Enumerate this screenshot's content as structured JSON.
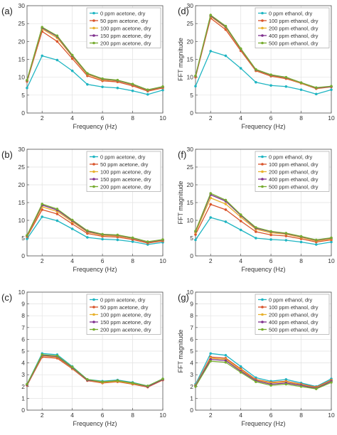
{
  "colors": {
    "series": [
      "#1fb5c2",
      "#d9532a",
      "#e8b12c",
      "#7f2f8e",
      "#77ac30"
    ],
    "grid": "#e2e2e2",
    "axis": "#555555",
    "text": "#333333"
  },
  "chart_data": [
    {
      "panel": "(a)",
      "type": "line",
      "xlabel": "Frequency (Hz)",
      "ylabel": "",
      "xlim": [
        1,
        10
      ],
      "ylim": [
        0,
        30
      ],
      "xticks": [
        2,
        4,
        6,
        8,
        10
      ],
      "yticks": [
        0,
        5,
        10,
        15,
        20,
        25,
        30
      ],
      "legend_position": "top-right",
      "grid": true,
      "x": [
        1,
        2,
        3,
        4,
        5,
        6,
        7,
        8,
        9,
        10
      ],
      "series": [
        {
          "name": "0 ppm acetone, dry",
          "values": [
            7.0,
            16.0,
            14.8,
            11.8,
            8.0,
            7.3,
            7.0,
            6.2,
            5.2,
            6.4
          ]
        },
        {
          "name": "50 ppm acetone, dry",
          "values": [
            8.8,
            22.8,
            20.0,
            15.2,
            10.4,
            9.0,
            8.7,
            7.6,
            6.1,
            7.0
          ]
        },
        {
          "name": "100 ppm acetone, dry",
          "values": [
            9.0,
            23.5,
            21.0,
            15.8,
            10.8,
            9.3,
            9.0,
            7.9,
            6.3,
            7.2
          ]
        },
        {
          "name": "150 ppm acetone, dry",
          "values": [
            9.1,
            23.8,
            21.4,
            16.0,
            11.0,
            9.5,
            9.1,
            8.0,
            6.4,
            7.3
          ]
        },
        {
          "name": "200 ppm acetone, dry",
          "values": [
            9.2,
            24.0,
            21.6,
            16.2,
            11.1,
            9.6,
            9.2,
            8.1,
            6.5,
            7.4
          ]
        }
      ]
    },
    {
      "panel": "(d)",
      "type": "line",
      "xlabel": "Frequency (Hz)",
      "ylabel": "FFT magnitude",
      "xlim": [
        1,
        10
      ],
      "ylim": [
        0,
        30
      ],
      "xticks": [
        2,
        4,
        6,
        8,
        10
      ],
      "yticks": [
        0,
        5,
        10,
        15,
        20,
        25,
        30
      ],
      "legend_position": "top-right",
      "grid": true,
      "x": [
        1,
        2,
        3,
        4,
        5,
        6,
        7,
        8,
        9,
        10
      ],
      "series": [
        {
          "name": "0 ppm ethanol, dry",
          "values": [
            7.5,
            17.3,
            16.0,
            12.5,
            8.6,
            7.7,
            7.4,
            6.5,
            5.3,
            6.5
          ]
        },
        {
          "name": "100 ppm ethanol, dry",
          "values": [
            10.0,
            26.5,
            23.3,
            17.4,
            11.8,
            10.3,
            9.6,
            8.3,
            6.8,
            7.3
          ]
        },
        {
          "name": "200 ppm ethanol, dry",
          "values": [
            10.2,
            27.0,
            23.9,
            17.8,
            12.0,
            10.5,
            9.8,
            8.4,
            6.9,
            7.4
          ]
        },
        {
          "name": "400 ppm ethanol, dry",
          "values": [
            10.3,
            27.2,
            24.1,
            17.9,
            12.1,
            10.6,
            9.9,
            8.5,
            7.0,
            7.4
          ]
        },
        {
          "name": "500 ppm ethanol, dry",
          "values": [
            10.4,
            27.4,
            24.3,
            18.0,
            12.2,
            10.7,
            10.0,
            8.5,
            7.1,
            7.5
          ]
        }
      ]
    },
    {
      "panel": "(b)",
      "type": "line",
      "xlabel": "Frequency (Hz)",
      "ylabel": "",
      "xlim": [
        1,
        10
      ],
      "ylim": [
        0,
        30
      ],
      "xticks": [
        2,
        4,
        6,
        8,
        10
      ],
      "yticks": [
        0,
        5,
        10,
        15,
        20,
        25,
        30
      ],
      "legend_position": "top-right",
      "grid": true,
      "x": [
        1,
        2,
        3,
        4,
        5,
        6,
        7,
        8,
        9,
        10
      ],
      "series": [
        {
          "name": "0 ppm acetone, dry",
          "values": [
            4.8,
            11.0,
            9.9,
            7.6,
            5.2,
            4.7,
            4.5,
            4.0,
            3.2,
            3.8
          ]
        },
        {
          "name": "50 ppm acetone, dry",
          "values": [
            5.4,
            13.0,
            11.8,
            9.0,
            6.3,
            5.5,
            5.3,
            4.6,
            3.6,
            4.2
          ]
        },
        {
          "name": "100 ppm acetone, dry",
          "values": [
            5.6,
            13.8,
            12.5,
            9.6,
            6.7,
            5.8,
            5.6,
            4.9,
            3.8,
            4.4
          ]
        },
        {
          "name": "150 ppm acetone, dry",
          "values": [
            5.7,
            14.3,
            12.9,
            9.9,
            6.9,
            6.0,
            5.8,
            5.0,
            3.9,
            4.5
          ]
        },
        {
          "name": "200 ppm acetone, dry",
          "values": [
            5.8,
            14.6,
            13.2,
            10.1,
            7.1,
            6.1,
            5.9,
            5.1,
            4.0,
            4.6
          ]
        }
      ]
    },
    {
      "panel": "(f)",
      "type": "line",
      "xlabel": "Frequency (Hz)",
      "ylabel": "FFT magnitude",
      "xlim": [
        1,
        10
      ],
      "ylim": [
        0,
        30
      ],
      "xticks": [
        2,
        4,
        6,
        8,
        10
      ],
      "yticks": [
        0,
        5,
        10,
        15,
        20,
        25,
        30
      ],
      "legend_position": "top-right",
      "grid": true,
      "x": [
        1,
        2,
        3,
        4,
        5,
        6,
        7,
        8,
        9,
        10
      ],
      "series": [
        {
          "name": "0 ppm ethanol, dry",
          "values": [
            4.5,
            10.8,
            9.6,
            7.3,
            5.0,
            4.6,
            4.4,
            3.9,
            3.2,
            3.9
          ]
        },
        {
          "name": "100 ppm ethanol, dry",
          "values": [
            6.0,
            14.5,
            13.0,
            9.8,
            6.8,
            5.9,
            5.6,
            4.8,
            3.9,
            4.5
          ]
        },
        {
          "name": "200 ppm ethanol, dry",
          "values": [
            6.6,
            16.3,
            14.6,
            10.9,
            7.5,
            6.5,
            6.1,
            5.2,
            4.2,
            4.8
          ]
        },
        {
          "name": "400 ppm ethanol, dry",
          "values": [
            6.9,
            17.2,
            15.4,
            11.4,
            7.8,
            6.8,
            6.3,
            5.4,
            4.4,
            5.0
          ]
        },
        {
          "name": "500 ppm ethanol, dry",
          "values": [
            7.0,
            17.6,
            15.7,
            11.6,
            8.0,
            6.9,
            6.4,
            5.5,
            4.5,
            5.1
          ]
        }
      ]
    },
    {
      "panel": "(c)",
      "type": "line",
      "xlabel": "Frequency (Hz)",
      "ylabel": "",
      "xlim": [
        1,
        10
      ],
      "ylim": [
        0,
        10
      ],
      "xticks": [
        2,
        4,
        6,
        8,
        10
      ],
      "yticks": [
        0,
        1,
        2,
        3,
        4,
        5,
        6,
        7,
        8,
        9,
        10
      ],
      "legend_position": "top-right",
      "grid": true,
      "x": [
        1,
        2,
        3,
        4,
        5,
        6,
        7,
        8,
        9,
        10
      ],
      "series": [
        {
          "name": "0 ppm acetone, dry",
          "values": [
            2.2,
            4.8,
            4.7,
            3.7,
            2.6,
            2.45,
            2.55,
            2.35,
            2.05,
            2.65
          ]
        },
        {
          "name": "50 ppm acetone, dry",
          "values": [
            2.1,
            4.5,
            4.4,
            3.5,
            2.5,
            2.3,
            2.4,
            2.2,
            1.95,
            2.55
          ]
        },
        {
          "name": "100 ppm acetone, dry",
          "values": [
            2.15,
            4.6,
            4.5,
            3.55,
            2.55,
            2.35,
            2.45,
            2.25,
            2.0,
            2.6
          ]
        },
        {
          "name": "150 ppm acetone, dry",
          "values": [
            2.15,
            4.65,
            4.55,
            3.6,
            2.55,
            2.4,
            2.5,
            2.3,
            2.0,
            2.6
          ]
        },
        {
          "name": "200 ppm acetone, dry",
          "values": [
            2.2,
            4.7,
            4.6,
            3.65,
            2.6,
            2.4,
            2.5,
            2.3,
            2.05,
            2.65
          ]
        }
      ]
    },
    {
      "panel": "(g)",
      "type": "line",
      "xlabel": "Frequency (Hz)",
      "ylabel": "FFT magnitude",
      "xlim": [
        1,
        10
      ],
      "ylim": [
        0,
        10
      ],
      "xticks": [
        2,
        4,
        6,
        8,
        10
      ],
      "yticks": [
        0,
        1,
        2,
        3,
        4,
        5,
        6,
        7,
        8,
        9,
        10
      ],
      "legend_position": "top-right",
      "grid": true,
      "x": [
        1,
        2,
        3,
        4,
        5,
        6,
        7,
        8,
        9,
        10
      ],
      "series": [
        {
          "name": "0 ppm ethanol, dry",
          "values": [
            2.2,
            4.8,
            4.65,
            3.7,
            2.75,
            2.45,
            2.6,
            2.3,
            2.0,
            2.65
          ]
        },
        {
          "name": "100 ppm ethanol, dry",
          "values": [
            2.1,
            4.5,
            4.4,
            3.5,
            2.6,
            2.35,
            2.45,
            2.2,
            1.95,
            2.55
          ]
        },
        {
          "name": "200 ppm ethanol, dry",
          "values": [
            2.1,
            4.4,
            4.3,
            3.4,
            2.55,
            2.3,
            2.4,
            2.15,
            1.9,
            2.5
          ]
        },
        {
          "name": "400 ppm ethanol, dry",
          "values": [
            2.05,
            4.3,
            4.2,
            3.3,
            2.5,
            2.2,
            2.3,
            2.1,
            1.85,
            2.45
          ]
        },
        {
          "name": "500 ppm ethanol, dry",
          "values": [
            2.0,
            4.15,
            4.05,
            3.2,
            2.4,
            2.1,
            2.2,
            2.0,
            1.8,
            2.35
          ]
        }
      ]
    }
  ]
}
